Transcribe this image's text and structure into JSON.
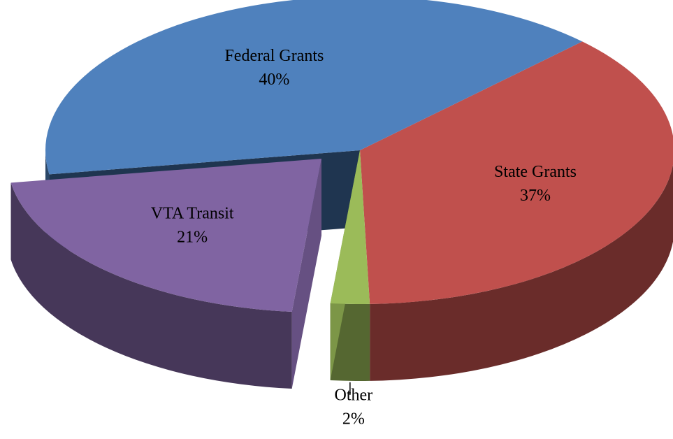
{
  "chart_data": {
    "type": "pie",
    "categories": [
      "State Grants",
      "Other",
      "VTA Transit",
      "Federal Grants"
    ],
    "values": [
      37,
      2,
      21,
      40
    ],
    "value_labels": [
      "37%",
      "2%",
      "21%",
      "40%"
    ],
    "colors": [
      "#c0504d",
      "#9bbb59",
      "#8064a2",
      "#4f81bd"
    ]
  }
}
